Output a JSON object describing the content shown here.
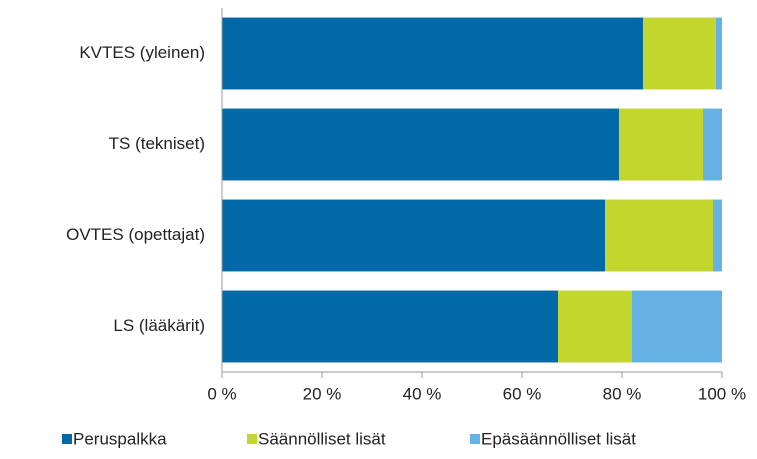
{
  "chart_data": {
    "type": "stacked_barh",
    "categories": [
      "KVTES (yleinen)",
      "TS (tekniset)",
      "OVTES (opettajat)",
      "LS (lääkärit)"
    ],
    "series": [
      {
        "name": "Peruspalkka",
        "color": "#0069a8",
        "values": [
          84.2,
          79.4,
          76.6,
          67.2
        ]
      },
      {
        "name": "Säännölliset lisät",
        "color": "#c3d62e",
        "values": [
          14.6,
          16.8,
          21.6,
          14.8
        ]
      },
      {
        "name": "Epäsäännölliset lisät",
        "color": "#64b2e4",
        "values": [
          1.2,
          3.8,
          1.8,
          18.0
        ]
      }
    ],
    "xlim": [
      0,
      100
    ],
    "xticks": [
      {
        "value": 0,
        "label": "0 %"
      },
      {
        "value": 20,
        "label": "20 %"
      },
      {
        "value": 40,
        "label": "40 %"
      },
      {
        "value": 60,
        "label": "60 %"
      },
      {
        "value": 80,
        "label": "80 %"
      },
      {
        "value": 100,
        "label": "100 %"
      }
    ],
    "legend": "bottom"
  }
}
